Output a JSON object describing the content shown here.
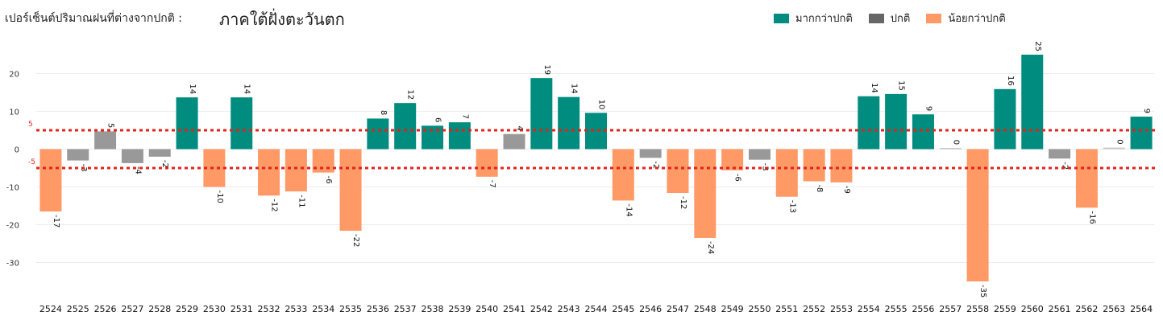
{
  "header": {
    "label": "เปอร์เซ็นต์ปริมาณฝนที่ต่างจากปกติ :",
    "region": "ภาคใต้ฝั่งตะวันตก"
  },
  "legend": [
    {
      "label": "มากกว่าปกติ",
      "color": "#008c7e"
    },
    {
      "label": "ปกติ",
      "color": "#666666"
    },
    {
      "label": "น้อยกว่าปกติ",
      "color": "#ff9966"
    }
  ],
  "chart_data": {
    "type": "bar",
    "categories": [
      "2524",
      "2525",
      "2526",
      "2527",
      "2528",
      "2529",
      "2530",
      "2531",
      "2532",
      "2533",
      "2534",
      "2535",
      "2536",
      "2537",
      "2538",
      "2539",
      "2540",
      "2541",
      "2542",
      "2543",
      "2544",
      "2545",
      "2546",
      "2547",
      "2548",
      "2549",
      "2550",
      "2551",
      "2552",
      "2553",
      "2554",
      "2555",
      "2556",
      "2557",
      "2558",
      "2559",
      "2560",
      "2561",
      "2562",
      "2563",
      "2564"
    ],
    "values": [
      -16.5,
      -3,
      4.7,
      -3.7,
      -2,
      13.7,
      -10,
      13.7,
      -12.3,
      -11.2,
      -6.2,
      -21.6,
      8.1,
      12.2,
      6.2,
      7.1,
      -7.3,
      4,
      18.8,
      13.8,
      9.6,
      -13.6,
      -2.3,
      -11.6,
      -23.5,
      -5.6,
      -2.8,
      -12.6,
      -8.5,
      -8.8,
      14,
      14.6,
      9.2,
      0.3,
      -35,
      15.9,
      25,
      -2.5,
      -15.5,
      0.4,
      8.6
    ],
    "labels": [
      "-17",
      "-3",
      "5",
      "-4",
      "-2",
      "14",
      "-10",
      "14",
      "-12",
      "-11",
      "-6",
      "-22",
      "8",
      "12",
      "6",
      "7",
      "-7",
      "4",
      "19",
      "14",
      "10",
      "-14",
      "-2",
      "-12",
      "-24",
      "-6",
      "-3",
      "-13",
      "-8",
      "-9",
      "14",
      "15",
      "9",
      "0",
      "-35",
      "16",
      "25",
      "-2",
      "-16",
      "0",
      "9"
    ],
    "ylim": [
      -38,
      27
    ],
    "yticks": [
      20,
      10,
      0,
      -10,
      -20,
      -30
    ],
    "grid": true,
    "reference_lines": [
      {
        "value": 5,
        "label": "5"
      },
      {
        "value": -5,
        "label": "-5"
      }
    ],
    "colors": {
      "above": "#008c7e",
      "normal": "#999999",
      "normal_light": "#c8c8c8",
      "below": "#ff9966",
      "reference": "#e0241b"
    },
    "xlabel": "",
    "ylabel": ""
  }
}
